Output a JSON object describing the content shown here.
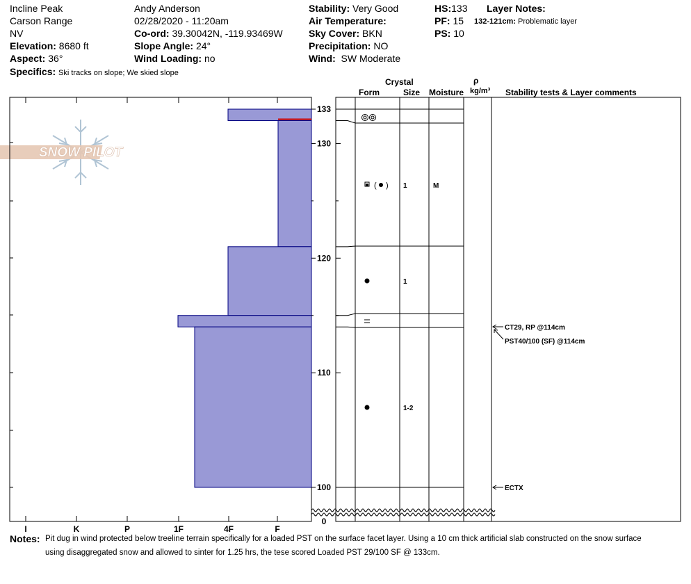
{
  "header": {
    "location": "Incline Peak",
    "range": "Carson Range",
    "state": "NV",
    "elevation_label": "Elevation:",
    "elevation_value": "8680 ft",
    "aspect_label": "Aspect:",
    "aspect_value": "36°",
    "observer": "Andy Anderson",
    "datetime": "02/28/2020 - 11:20am",
    "coord_label": "Co-ord:",
    "coord_value": "39.30042N, -119.93469W",
    "slope_label": "Slope Angle:",
    "slope_value": "24°",
    "wind_loading_label": "Wind Loading:",
    "wind_loading_value": "no",
    "stability_label": "Stability:",
    "stability_value": "Very Good",
    "air_temp_label": "Air Temperature:",
    "air_temp_value": "",
    "sky_label": "Sky Cover:",
    "sky_value": "BKN",
    "precip_label": "Precipitation:",
    "precip_value": "NO",
    "wind_label": "Wind:",
    "wind_value": "SW Moderate",
    "hs_label": "HS:",
    "hs_value": "133",
    "pf_label": "PF:",
    "pf_value": "15",
    "ps_label": "PS:",
    "ps_value": "10",
    "layer_notes_label": "Layer Notes:",
    "layer_note_range": "132-121cm:",
    "layer_note_text": "Problematic layer",
    "specifics_label": "Specifics:",
    "specifics_value": "Ski tracks on slope; We skied slope"
  },
  "logo_text": "SNOW PILOT",
  "columns": {
    "crystal": "Crystal",
    "form": "Form",
    "size": "Size",
    "moisture": "Moisture",
    "rho": "ρ",
    "density_unit": "kg/m³",
    "stability": "Stability tests & Layer comments"
  },
  "hardness_axis": {
    "labels": [
      "I",
      "K",
      "P",
      "1F",
      "4F",
      "F"
    ]
  },
  "depth_axis": {
    "ticks": [
      "133",
      "130",
      "120",
      "110",
      "100",
      "0"
    ]
  },
  "chart_data": {
    "type": "snow_profile",
    "depth_unit": "cm",
    "hardness_scale": [
      "F",
      "4F",
      "1F",
      "P",
      "K",
      "I"
    ],
    "layers": [
      {
        "top": 133,
        "bottom": 132,
        "hardness": "4F",
        "form": "melt-freeze",
        "size": "",
        "moisture": ""
      },
      {
        "top": 132,
        "bottom": 121,
        "hardness": "F",
        "form": "depth hoar (rounding facets)",
        "size": "1",
        "moisture": "M"
      },
      {
        "top": 121,
        "bottom": 115,
        "hardness": "4F",
        "form": "rounded grains",
        "size": "1",
        "moisture": ""
      },
      {
        "top": 115,
        "bottom": 114,
        "hardness": "1F",
        "form": "surface hoar",
        "size": "",
        "moisture": ""
      },
      {
        "top": 114,
        "bottom": 100,
        "hardness": "4F-1F",
        "form": "rounded grains",
        "size": "1-2",
        "moisture": ""
      }
    ],
    "problem_layer": {
      "top": 132,
      "bottom": 121
    },
    "depth_ticks": [
      133,
      130,
      120,
      110,
      100,
      0
    ]
  },
  "layer_sizes": [
    "1",
    "1",
    "1-2"
  ],
  "layer_moisture": [
    "M"
  ],
  "tests": [
    {
      "text": "CT29, RP @114cm"
    },
    {
      "text": "PST40/100 (SF) @114cm"
    },
    {
      "text": "ECTX"
    }
  ],
  "notes": {
    "label": "Notes:",
    "line1": "Pit dug in wind protected below treeline terrain specifically for a loaded PST on the surface facet layer. Using a 10 cm thick artificial slab constructed on the snow surface",
    "line2": "using disaggregated snow and allowed to sinter for 1.25 hrs, the tese scored Loaded PST 29/100 SF @ 133cm."
  },
  "colors": {
    "layer_fill": "#9999d6",
    "layer_stroke": "#000080",
    "problem_line": "#cc0000",
    "logo_fill": "#e6c8b4",
    "snowflake": "#b0c4d4"
  }
}
